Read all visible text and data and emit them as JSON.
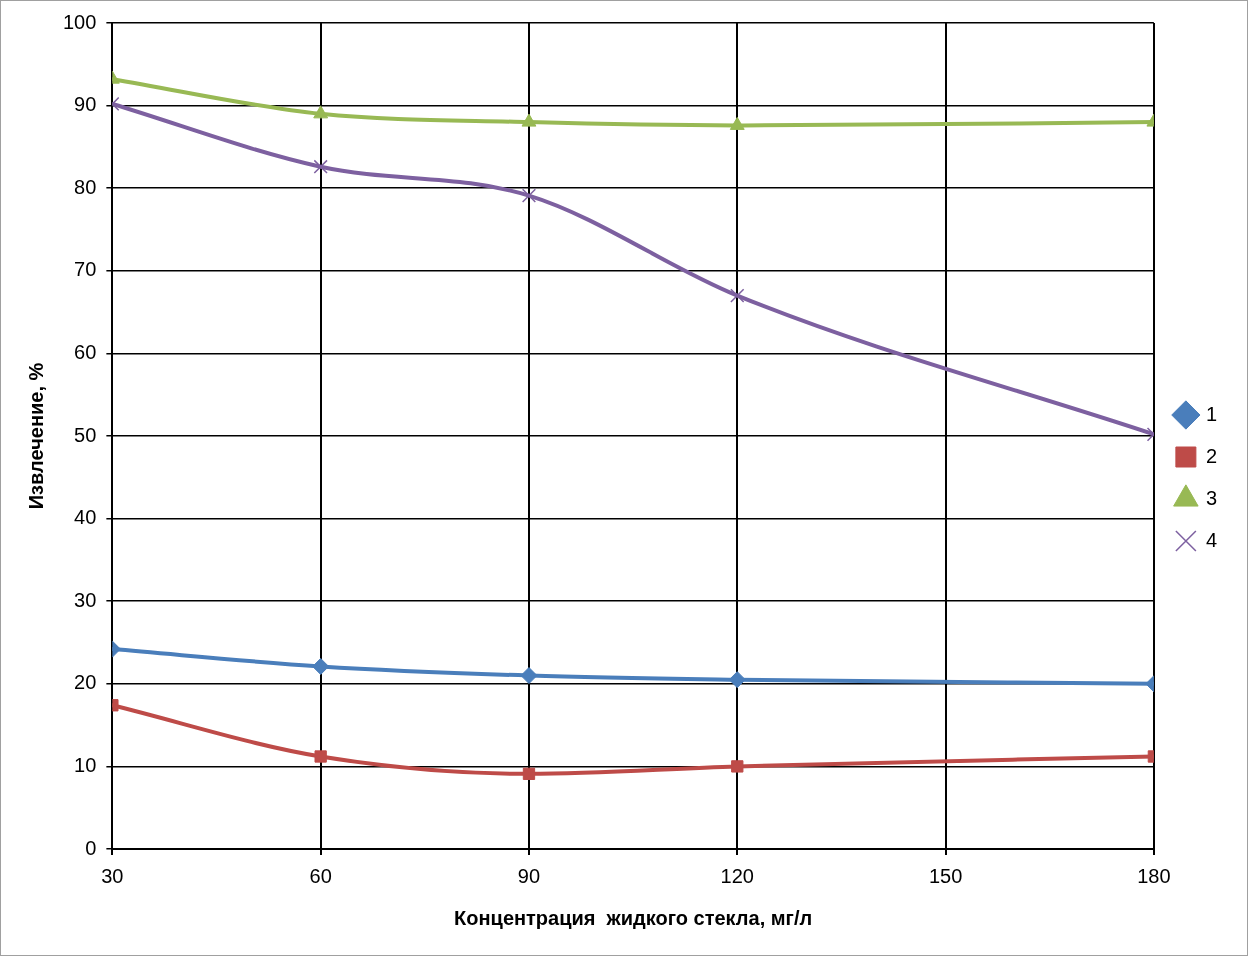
{
  "chart_data": {
    "type": "line",
    "xlabel": "Концентрация  жидкого стекла, мг/л",
    "ylabel": "Извлечение, %",
    "x": [
      30,
      60,
      90,
      120,
      180
    ],
    "xlim": [
      30,
      180
    ],
    "xticks": [
      30,
      60,
      90,
      120,
      150,
      180
    ],
    "ylim": [
      0,
      100
    ],
    "yticks": [
      0,
      10,
      20,
      30,
      40,
      50,
      60,
      70,
      80,
      90,
      100
    ],
    "grid": true,
    "legend": "right",
    "line_style": "solid",
    "series": [
      {
        "name": "1",
        "color": "#4a7ebb",
        "marker": "diamond",
        "values": [
          24.2,
          22.1,
          21.0,
          20.5,
          20.0
        ]
      },
      {
        "name": "2",
        "color": "#be4b48",
        "marker": "square",
        "values": [
          17.4,
          11.2,
          9.1,
          10.0,
          11.2
        ]
      },
      {
        "name": "3",
        "color": "#98b954",
        "marker": "triangle",
        "values": [
          93.2,
          89.0,
          88.0,
          87.6,
          88.0
        ]
      },
      {
        "name": "4",
        "color": "#7d60a0",
        "marker": "cross",
        "values": [
          90.2,
          82.6,
          79.1,
          67.0,
          50.2
        ]
      }
    ]
  }
}
